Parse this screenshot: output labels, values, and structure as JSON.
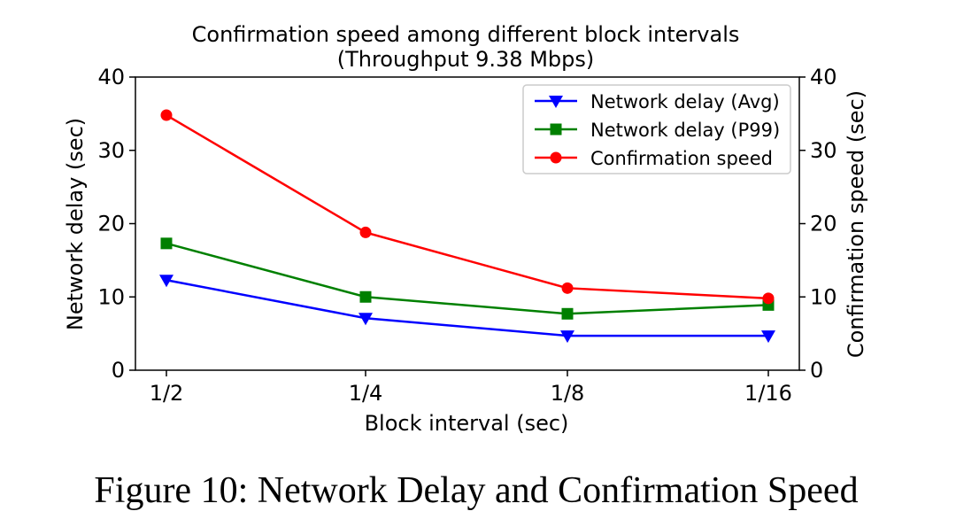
{
  "chart_data": {
    "type": "line",
    "title_line1": "Confirmation speed among different block intervals",
    "title_line2": "(Throughput 9.38 Mbps)",
    "xlabel": "Block interval (sec)",
    "ylabel_left": "Network delay (sec)",
    "ylabel_right": "Confirmation speed (sec)",
    "categories": [
      "1/2",
      "1/4",
      "1/8",
      "1/16"
    ],
    "ylim": [
      0,
      40
    ],
    "yticks": [
      0,
      10,
      20,
      30,
      40
    ],
    "yticks_right": [
      0,
      10,
      20,
      30,
      40
    ],
    "legend_position": "top-right",
    "series": [
      {
        "name": "Network delay (Avg)",
        "color": "#0000ff",
        "marker": "triangle-down",
        "values": [
          12.3,
          7.1,
          4.7,
          4.7
        ]
      },
      {
        "name": "Network delay (P99)",
        "color": "#008000",
        "marker": "square",
        "values": [
          17.3,
          10.0,
          7.7,
          8.9
        ]
      },
      {
        "name": "Confirmation speed",
        "color": "#ff0000",
        "marker": "circle",
        "values": [
          34.8,
          18.8,
          11.2,
          9.8
        ]
      }
    ]
  },
  "caption": "Figure 10: Network Delay and Confirmation Speed"
}
